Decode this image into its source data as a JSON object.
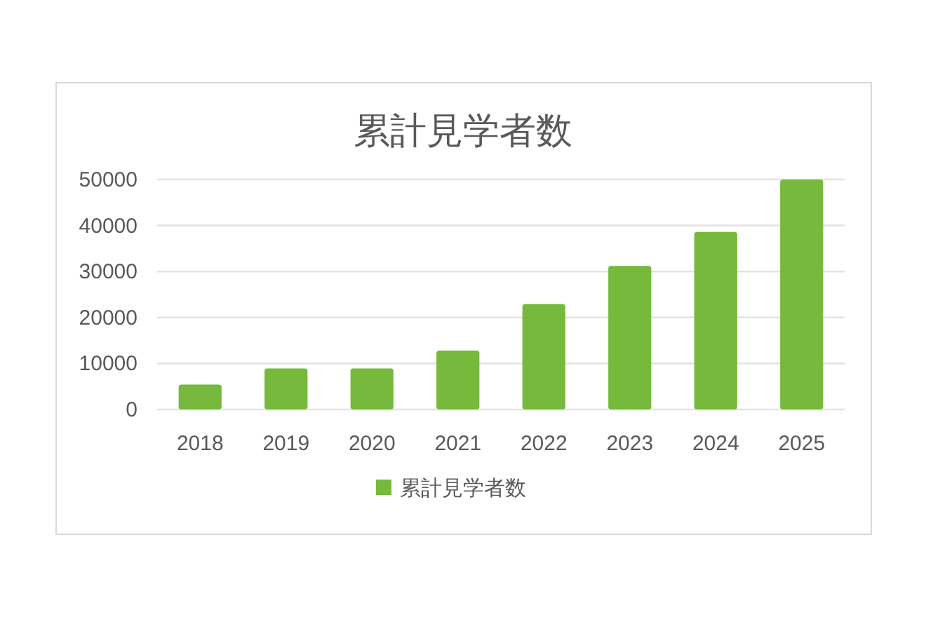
{
  "chart_data": {
    "type": "bar",
    "title": "累計見学者数",
    "categories": [
      "2018",
      "2019",
      "2020",
      "2021",
      "2022",
      "2023",
      "2024",
      "2025"
    ],
    "series": [
      {
        "name": "累計見学者数",
        "color": "#76b93c",
        "values": [
          5400,
          8900,
          8900,
          12800,
          22900,
          31200,
          38600,
          50000
        ]
      }
    ],
    "ylim": [
      0,
      50000
    ],
    "yticks": [
      0,
      10000,
      20000,
      30000,
      40000,
      50000
    ],
    "grid": "y",
    "legend": "bottom"
  }
}
